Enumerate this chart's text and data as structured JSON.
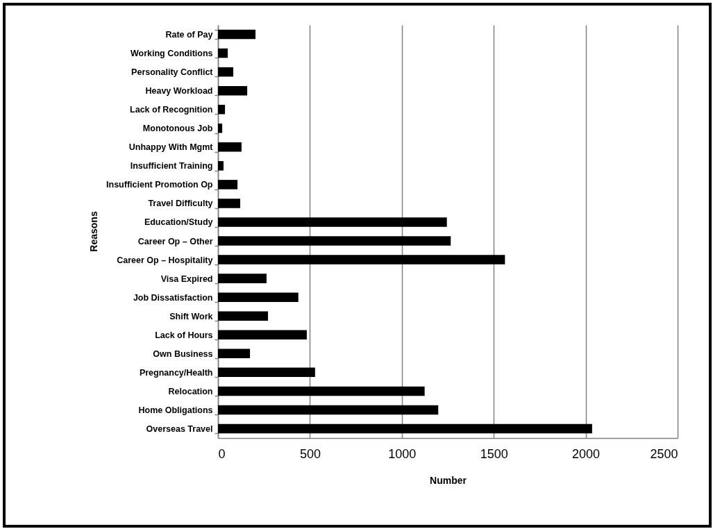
{
  "chart_data": {
    "type": "bar",
    "orientation": "horizontal",
    "xlabel": "Number",
    "ylabel": "Reasons",
    "categories": [
      "Rate of Pay",
      "Working Conditions",
      "Personality Conflict",
      "Heavy Workload",
      "Lack of Recognition",
      "Monotonous Job",
      "Unhappy With Mgmt",
      "Insufficient Training",
      "Insufficient Promotion Op",
      "Travel Difficulty",
      "Education/Study",
      "Career Op – Other",
      "Career Op – Hospitality",
      "Visa Expired",
      "Job Dissatisfaction",
      "Shift Work",
      "Lack of Hours",
      "Own Business",
      "Pregnancy/Health",
      "Relocation",
      "Home Obligations",
      "Overseas Travel"
    ],
    "values": [
      204,
      53,
      83,
      159,
      38,
      23,
      128,
      30,
      106,
      121,
      1245,
      1266,
      1561,
      264,
      437,
      272,
      483,
      174,
      528,
      1124,
      1198,
      2035
    ],
    "color": "#000000",
    "xlim": [
      0,
      2500
    ],
    "xticks": [
      0,
      500,
      1000,
      1500,
      2000,
      2500
    ],
    "grid": "x"
  }
}
